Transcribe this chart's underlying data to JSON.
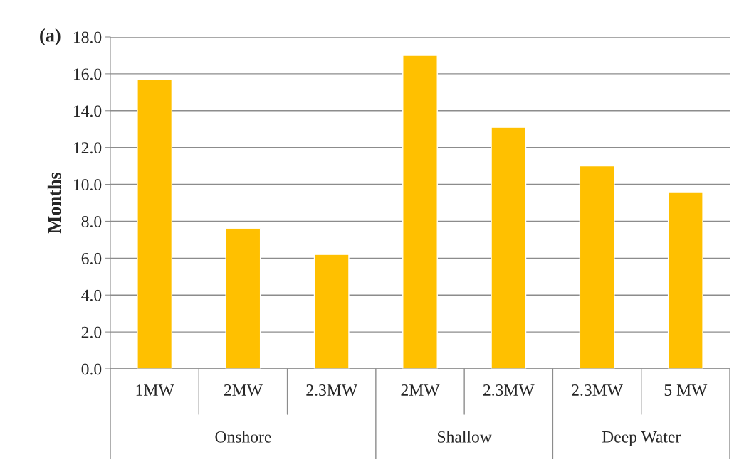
{
  "chart_data": {
    "type": "bar",
    "title": "(a)",
    "ylabel": "Months",
    "categories": [
      "1MW",
      "2MW",
      "2.3MW",
      "2MW",
      "2.3MW",
      "2.3MW",
      "5 MW"
    ],
    "values": [
      15.7,
      7.6,
      6.2,
      17.0,
      13.1,
      11.0,
      9.6
    ],
    "color": "#ffc000",
    "ylim": [
      0,
      18
    ],
    "yticks": [
      {
        "value": 0,
        "label": "0.0"
      },
      {
        "value": 2,
        "label": "2.0"
      },
      {
        "value": 4,
        "label": "4.0"
      },
      {
        "value": 6,
        "label": "6.0"
      },
      {
        "value": 8,
        "label": "8.0"
      },
      {
        "value": 10,
        "label": "10.0"
      },
      {
        "value": 12,
        "label": "12.0"
      },
      {
        "value": 14,
        "label": "14.0"
      },
      {
        "value": 16,
        "label": "16.0"
      },
      {
        "value": 18,
        "label": "18.0"
      }
    ],
    "grid": "y",
    "annotations": [
      "Onshore",
      "Shallow",
      "Deep Water"
    ]
  }
}
